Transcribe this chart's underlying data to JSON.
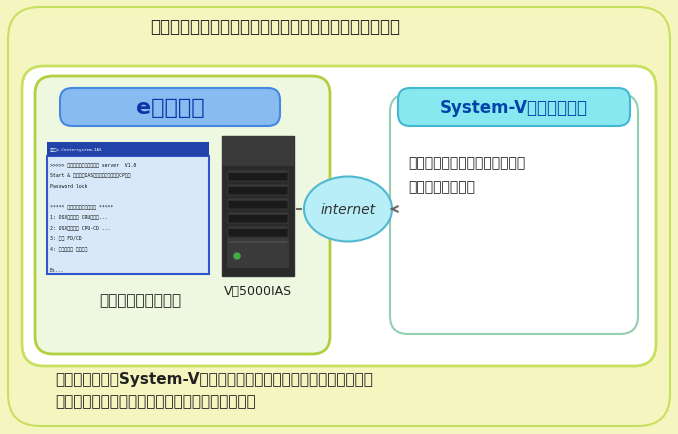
{
  "title": "法改正などの更新作業はオンラインで簡単に行えます。",
  "title_fontsize": 12,
  "outer_bg": "#f5f5c0",
  "inner_box_color": "#c8e060",
  "left_panel_bg": "#eef8e0",
  "left_panel_border": "#b0d040",
  "right_panel_border": "#90d0b0",
  "e_jimusho_label": "e－事務所",
  "e_jimusho_bg": "#88bbf0",
  "e_jimusho_border": "#4488e0",
  "e_jimusho_text_color": "#1133aa",
  "system_v_label": "System-V更新センター",
  "system_v_bg": "#88e8f0",
  "system_v_border": "#44b8d0",
  "system_v_text_color": "#0044aa",
  "internet_label": "internet",
  "v5000_label": "V－5000IAS",
  "download_label": "ダウンロードを実行",
  "bullet1": "・最新アプリケーションの確認",
  "bullet2": "・必要更新の通知",
  "footer1": "必要な更新は、System-V更新センターから自動通知されますので、",
  "footer2": "あとはダウンロードを実行するだけの簡単作業。",
  "footer_fontsize": 11,
  "text_color": "#222222",
  "line_color": "#666666"
}
